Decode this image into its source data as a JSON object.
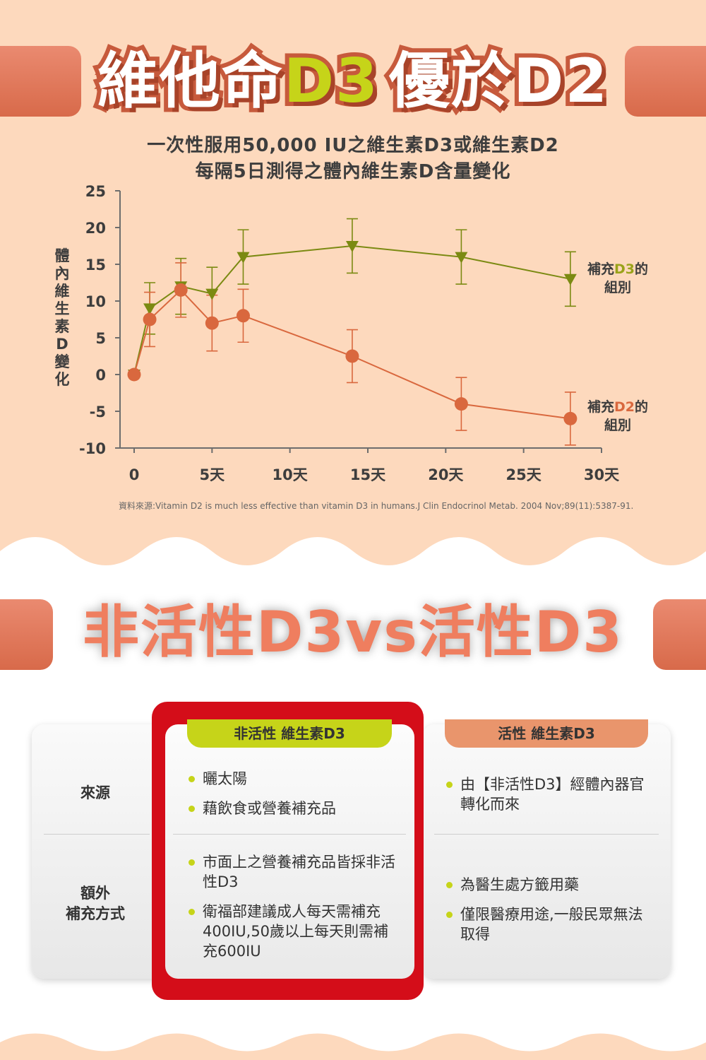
{
  "header_title": {
    "part1": "維他命",
    "part2": "D3",
    "part3": "優於D2"
  },
  "chart_subtitle": {
    "line1": "一次性服用50,000 IU之維生素D3或維生素D2",
    "line2": "每隔5日測得之體內維生素D含量變化"
  },
  "chart_data": {
    "type": "line",
    "title": "一次性服用50,000 IU之維生素D3或維生素D2 每隔5日測得之體內維生素D含量變化",
    "ylabel": "體內維生素D變化",
    "xlabel": "",
    "ylim": [
      -10,
      25
    ],
    "xlim": [
      0,
      30
    ],
    "y_ticks": [
      "25",
      "20",
      "15",
      "10",
      "5",
      "0",
      "-5",
      "-10"
    ],
    "x_ticks": [
      "0",
      "5天",
      "10天",
      "15天",
      "20天",
      "25天",
      "30天"
    ],
    "series": [
      {
        "name": "補充D3的組別",
        "color": "#7b8a12",
        "marker": "triangle-down",
        "x": [
          0,
          1,
          3,
          5,
          7,
          14,
          21,
          28
        ],
        "y": [
          0,
          9,
          12,
          11,
          16,
          17.5,
          16,
          13
        ],
        "err": [
          0,
          3.5,
          3.8,
          3.6,
          3.7,
          3.7,
          3.7,
          3.7
        ]
      },
      {
        "name": "補充D2的組別",
        "color": "#d9683e",
        "marker": "circle",
        "x": [
          0,
          1,
          3,
          5,
          7,
          14,
          21,
          28
        ],
        "y": [
          0,
          7.5,
          11.5,
          7,
          8,
          2.5,
          -4,
          -6
        ],
        "err": [
          0,
          3.7,
          3.7,
          3.8,
          3.6,
          3.6,
          3.6,
          3.6
        ]
      }
    ],
    "legend": {
      "d3_prefix": "補充",
      "d3_mid": "D3",
      "d3_suffix": "的",
      "d3_line2": "組別",
      "d2_prefix": "補充",
      "d2_mid": "D2",
      "d2_suffix": "的",
      "d2_line2": "組別"
    },
    "source": "資料來源:Vitamin D2 is much less effective than vitamin D3 in humans.J Clin Endocrinol Metab. 2004 Nov;89(11):5387-91."
  },
  "section2_title": "非活性D3vs活性D3",
  "comparison": {
    "row_labels": {
      "source": "來源",
      "extra_line1": "額外",
      "extra_line2": "補充方式"
    },
    "inactive": {
      "header": "非活性 維生素D3",
      "source_items": [
        "曬太陽",
        "藉飲食或營養補充品"
      ],
      "extra_items": [
        "市面上之營養補充品皆採非活性D3",
        "衛福部建議成人每天需補充400IU,50歲以上每天則需補充600IU"
      ]
    },
    "active": {
      "header": "活性 維生素D3",
      "source_items": [
        "由【非活性D3】經體內器官轉化而來"
      ],
      "extra_items": [
        "為醫生處方籤用藥",
        "僅限醫療用途,一般民眾無法取得"
      ]
    }
  },
  "colors": {
    "peach_bg": "#fdd9bd",
    "title_bar": "#e07a5c",
    "accent_green": "#c6d419",
    "accent_orange": "#e9956c",
    "red_frame": "#d40d19"
  }
}
